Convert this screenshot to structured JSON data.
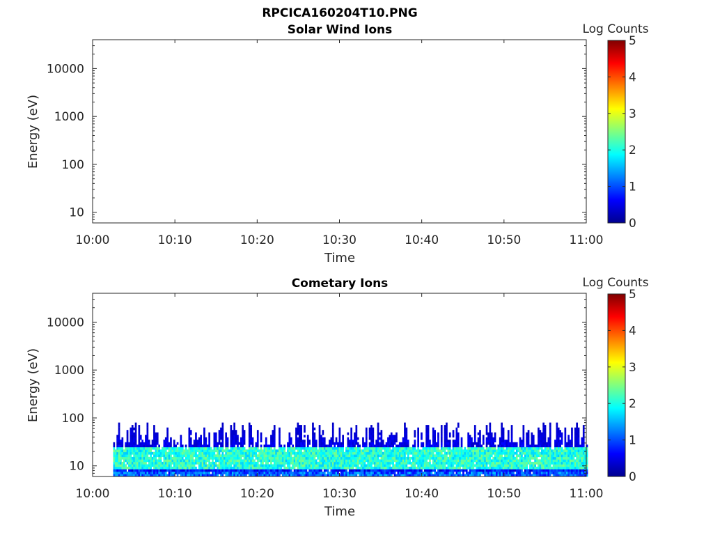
{
  "figure_title": "RPCICA160204T10.PNG",
  "chart_data": [
    {
      "type": "heatmap",
      "title": "Solar Wind Ions",
      "xlabel": "Time",
      "ylabel": "Energy (eV)",
      "x_ticks": [
        "10:00",
        "10:10",
        "10:20",
        "10:30",
        "10:40",
        "10:50",
        "11:00"
      ],
      "xlim": [
        "10:00",
        "11:00"
      ],
      "y_scale": "log",
      "y_ticks": [
        "10",
        "100",
        "1000",
        "10000"
      ],
      "ylim": [
        6,
        40000
      ],
      "colorbar": {
        "label": "Log Counts",
        "ticks": [
          "0",
          "1",
          "2",
          "3",
          "4",
          "5"
        ],
        "range": [
          0,
          5
        ],
        "colormap": "jet"
      },
      "cells": []
    },
    {
      "type": "heatmap",
      "title": "Cometary Ions",
      "xlabel": "Time",
      "ylabel": "Energy (eV)",
      "x_ticks": [
        "10:00",
        "10:10",
        "10:20",
        "10:30",
        "10:40",
        "10:50",
        "11:00"
      ],
      "xlim": [
        "10:00",
        "11:00"
      ],
      "y_scale": "log",
      "y_ticks": [
        "10",
        "100",
        "1000",
        "10000"
      ],
      "ylim": [
        6,
        40000
      ],
      "colorbar": {
        "label": "Log Counts",
        "ticks": [
          "0",
          "1",
          "2",
          "3",
          "4",
          "5"
        ],
        "range": [
          0,
          5
        ],
        "colormap": "jet"
      },
      "data_start": "10:02.5",
      "data_end": "11:00",
      "energy_band_eV": [
        6,
        80
      ],
      "peak_log_counts": 2.5,
      "typical_log_counts_core": 2.0,
      "core_energy_eV": [
        8,
        25
      ]
    }
  ]
}
